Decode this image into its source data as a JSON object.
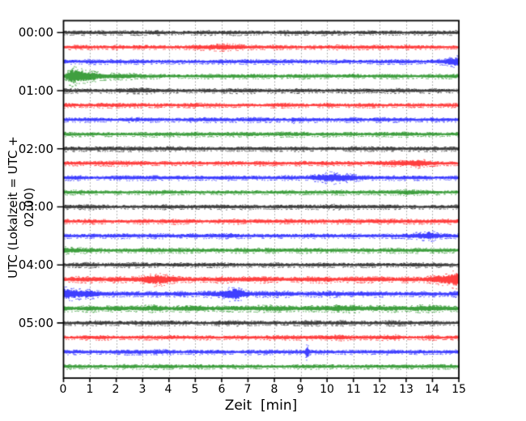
{
  "chart_data": {
    "type": "line",
    "subtype": "seismogram-helicorder",
    "title": "",
    "xlabel": "Zeit  [min]",
    "ylabel": "UTC (Lokalzeit = UTC + 02:00)",
    "xlim": [
      0,
      15
    ],
    "minutes_per_line": 15,
    "x_ticks": [
      "0",
      "1",
      "2",
      "3",
      "4",
      "5",
      "6",
      "7",
      "8",
      "9",
      "10",
      "11",
      "12",
      "13",
      "14",
      "15"
    ],
    "y_ticks": [
      "00:00",
      "01:00",
      "02:00",
      "03:00",
      "04:00",
      "05:00"
    ],
    "grid": {
      "vertical": "dotted",
      "horizontal": "none",
      "color": "#8c8c8c"
    },
    "legend": null,
    "colors": {
      "black": "#000000",
      "red": "#ff0000",
      "blue": "#0000ff",
      "green": "#008000",
      "spine": "#000000",
      "background": "#ffffff"
    },
    "rows": [
      {
        "time": "00:00",
        "color": "black",
        "base": 1.0,
        "events": [
          {
            "type": "spindle",
            "start": 7.8,
            "end": 10.2,
            "amp": 1.3
          }
        ]
      },
      {
        "time": "00:15",
        "color": "red",
        "base": 1.0,
        "events": [
          {
            "type": "spindle",
            "start": 5.0,
            "end": 7.3,
            "amp": 1.7
          }
        ]
      },
      {
        "time": "00:30",
        "color": "blue",
        "base": 1.0,
        "events": [
          {
            "type": "ramp",
            "start": 13.6,
            "end": 15.0,
            "amp": 2.6
          }
        ]
      },
      {
        "time": "00:45",
        "color": "green",
        "base": 1.0,
        "events": [
          {
            "type": "quake",
            "start": 0.02,
            "peak": 0.3,
            "amp": 5.0,
            "tau": 0.8
          }
        ]
      },
      {
        "time": "01:00",
        "color": "black",
        "base": 1.0,
        "events": [
          {
            "type": "spindle",
            "start": 2.2,
            "end": 4.4,
            "amp": 1.3
          }
        ]
      },
      {
        "time": "01:15",
        "color": "red",
        "base": 1.0,
        "events": []
      },
      {
        "time": "01:30",
        "color": "blue",
        "base": 1.0,
        "events": [
          {
            "type": "spike",
            "x": 8.72,
            "amp": 1.9,
            "sigma": 0.04
          }
        ]
      },
      {
        "time": "01:45",
        "color": "green",
        "base": 1.0,
        "events": [
          {
            "type": "spindle",
            "start": 7.6,
            "end": 8.6,
            "amp": 1.3
          }
        ]
      },
      {
        "time": "02:00",
        "color": "black",
        "base": 1.0,
        "events": [
          {
            "type": "spindle",
            "start": 7.0,
            "end": 8.3,
            "amp": 1.25
          }
        ]
      },
      {
        "time": "02:15",
        "color": "red",
        "base": 1.0,
        "events": [
          {
            "type": "spindle",
            "start": 11.9,
            "end": 14.3,
            "amp": 2.1
          }
        ]
      },
      {
        "time": "02:30",
        "color": "blue",
        "base": 1.0,
        "events": [
          {
            "type": "spindle",
            "start": 9.3,
            "end": 11.4,
            "amp": 2.6
          }
        ]
      },
      {
        "time": "02:45",
        "color": "green",
        "base": 1.0,
        "events": [
          {
            "type": "spindle",
            "start": 12.6,
            "end": 13.5,
            "amp": 1.4
          }
        ]
      },
      {
        "time": "03:00",
        "color": "black",
        "base": 1.0,
        "events": [
          {
            "type": "spindle",
            "start": 9.6,
            "end": 10.9,
            "amp": 1.35
          }
        ]
      },
      {
        "time": "03:15",
        "color": "red",
        "base": 1.0,
        "events": []
      },
      {
        "time": "03:30",
        "color": "blue",
        "base": 1.0,
        "events": [
          {
            "type": "spindle",
            "start": 12.8,
            "end": 14.7,
            "amp": 2.3
          }
        ]
      },
      {
        "time": "03:45",
        "color": "green",
        "base": 1.0,
        "events": [
          {
            "type": "decay",
            "start": 0.0,
            "amp": 1.6,
            "tau": 1.3
          }
        ]
      },
      {
        "time": "04:00",
        "color": "black",
        "base": 1.0,
        "events": [
          {
            "type": "spindle",
            "start": 2.2,
            "end": 3.5,
            "amp": 1.3
          }
        ]
      },
      {
        "time": "04:15",
        "color": "red",
        "base": 1.3,
        "events": [
          {
            "type": "spindle",
            "start": 2.5,
            "end": 4.4,
            "amp": 2.4
          },
          {
            "type": "ramp",
            "start": 13.4,
            "end": 15.0,
            "amp": 4.0
          }
        ]
      },
      {
        "time": "04:30",
        "color": "blue",
        "base": 1.25,
        "events": [
          {
            "type": "decay",
            "start": 0.0,
            "amp": 3.4,
            "tau": 0.9
          },
          {
            "type": "spindle",
            "start": 5.8,
            "end": 7.2,
            "amp": 3.5
          }
        ]
      },
      {
        "time": "04:45",
        "color": "green",
        "base": 1.5,
        "events": []
      },
      {
        "time": "05:00",
        "color": "black",
        "base": 1.05,
        "events": [
          {
            "type": "spindle",
            "start": 8.6,
            "end": 10.4,
            "amp": 1.4
          }
        ]
      },
      {
        "time": "05:15",
        "color": "red",
        "base": 1.0,
        "events": [
          {
            "type": "spindle",
            "start": 10.3,
            "end": 11.2,
            "amp": 1.3
          },
          {
            "type": "spindle",
            "start": 12.1,
            "end": 13.0,
            "amp": 1.3
          }
        ]
      },
      {
        "time": "05:30",
        "color": "blue",
        "base": 1.0,
        "events": [
          {
            "type": "spike",
            "x": 9.25,
            "amp": 3.8,
            "sigma": 0.05
          }
        ]
      },
      {
        "time": "05:45",
        "color": "green",
        "base": 1.0,
        "events": []
      }
    ]
  }
}
